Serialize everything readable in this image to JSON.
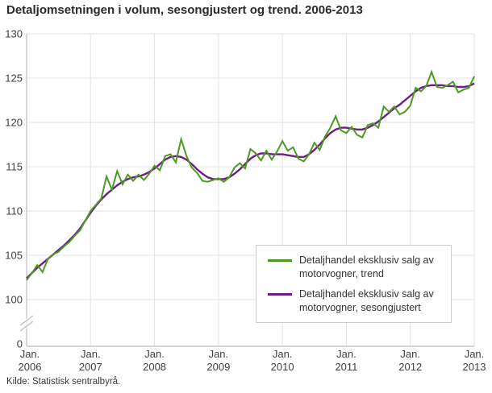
{
  "title": "Detaljomsetningen i volum, sesongjustert og trend. 2006-2013",
  "source": "Kilde: Statistisk sentralbyrå.",
  "colors": {
    "trend_green": "#4c9a21",
    "seasonal_purple": "#6c1d87",
    "grid": "#e3e3e3",
    "axis": "#c6c6c6",
    "tick_text": "#3f3f3f",
    "title_text": "#2b2b2b"
  },
  "chart_data": {
    "type": "line",
    "title": "Detaljomsetningen i volum, sesongjustert og trend. 2006-2013",
    "xlabel": "",
    "ylabel": "",
    "grid": true,
    "axis_break_between": [
      0,
      100
    ],
    "ylim": [
      100,
      130
    ],
    "y_ticks": [
      130,
      125,
      120,
      115,
      110,
      105,
      100,
      0
    ],
    "x_ticks": [
      {
        "line1": "Jan.",
        "line2": "2006"
      },
      {
        "line1": "Jan.",
        "line2": "2007"
      },
      {
        "line1": "Jan.",
        "line2": "2008"
      },
      {
        "line1": "Jan.",
        "line2": "2009"
      },
      {
        "line1": "Jan.",
        "line2": "2010"
      },
      {
        "line1": "Jan.",
        "line2": "2011"
      },
      {
        "line1": "Jan.",
        "line2": "2012"
      },
      {
        "line1": "Jan.",
        "line2": "2013"
      }
    ],
    "x_frequency": "monthly",
    "x_range": "Jan 2006 - Jan 2013",
    "legend_position": "inside-bottom-right",
    "series": [
      {
        "name": "Detaljhandel eksklusiv salg av motorvogner, trend",
        "color": "#4c9a21",
        "values": [
          102.2,
          103.0,
          103.9,
          103.1,
          104.6,
          105.1,
          105.4,
          106.0,
          106.5,
          107.2,
          107.8,
          108.9,
          110.0,
          110.7,
          111.4,
          113.9,
          112.4,
          114.5,
          113.0,
          114.1,
          113.4,
          114.1,
          113.5,
          114.2,
          115.1,
          114.6,
          116.2,
          116.4,
          115.5,
          118.1,
          116.2,
          114.9,
          114.3,
          113.4,
          113.3,
          113.5,
          113.7,
          113.3,
          113.8,
          114.9,
          115.4,
          114.8,
          117.0,
          116.5,
          115.7,
          116.8,
          115.8,
          116.7,
          117.9,
          116.8,
          117.2,
          115.9,
          115.6,
          116.4,
          117.7,
          116.9,
          118.4,
          119.4,
          120.7,
          119.1,
          118.8,
          119.5,
          118.6,
          118.3,
          119.7,
          119.9,
          119.4,
          121.8,
          121.2,
          121.8,
          120.9,
          121.2,
          121.9,
          123.9,
          123.5,
          124.1,
          125.7,
          124.0,
          123.9,
          124.2,
          124.6,
          123.4,
          123.7,
          123.9,
          125.2
        ]
      },
      {
        "name": "Detaljhandel eksklusiv salg av motorvogner, sesongjustert",
        "color": "#6c1d87",
        "values": [
          102.4,
          103.0,
          103.6,
          104.1,
          104.6,
          105.1,
          105.6,
          106.1,
          106.7,
          107.3,
          108.0,
          108.9,
          109.8,
          110.6,
          111.3,
          111.9,
          112.4,
          112.9,
          113.3,
          113.6,
          113.8,
          113.9,
          114.1,
          114.4,
          114.8,
          115.3,
          115.8,
          116.1,
          116.2,
          116.1,
          115.8,
          115.3,
          114.7,
          114.2,
          113.8,
          113.6,
          113.6,
          113.6,
          113.8,
          114.2,
          114.7,
          115.3,
          115.9,
          116.3,
          116.5,
          116.5,
          116.4,
          116.4,
          116.4,
          116.3,
          116.2,
          116.1,
          116.1,
          116.4,
          116.9,
          117.5,
          118.2,
          118.8,
          119.2,
          119.4,
          119.4,
          119.3,
          119.2,
          119.2,
          119.4,
          119.7,
          120.1,
          120.6,
          121.1,
          121.6,
          122.0,
          122.5,
          123.0,
          123.5,
          123.9,
          124.1,
          124.2,
          124.2,
          124.2,
          124.1,
          124.1,
          124.0,
          124.0,
          124.1,
          124.4
        ]
      }
    ]
  }
}
